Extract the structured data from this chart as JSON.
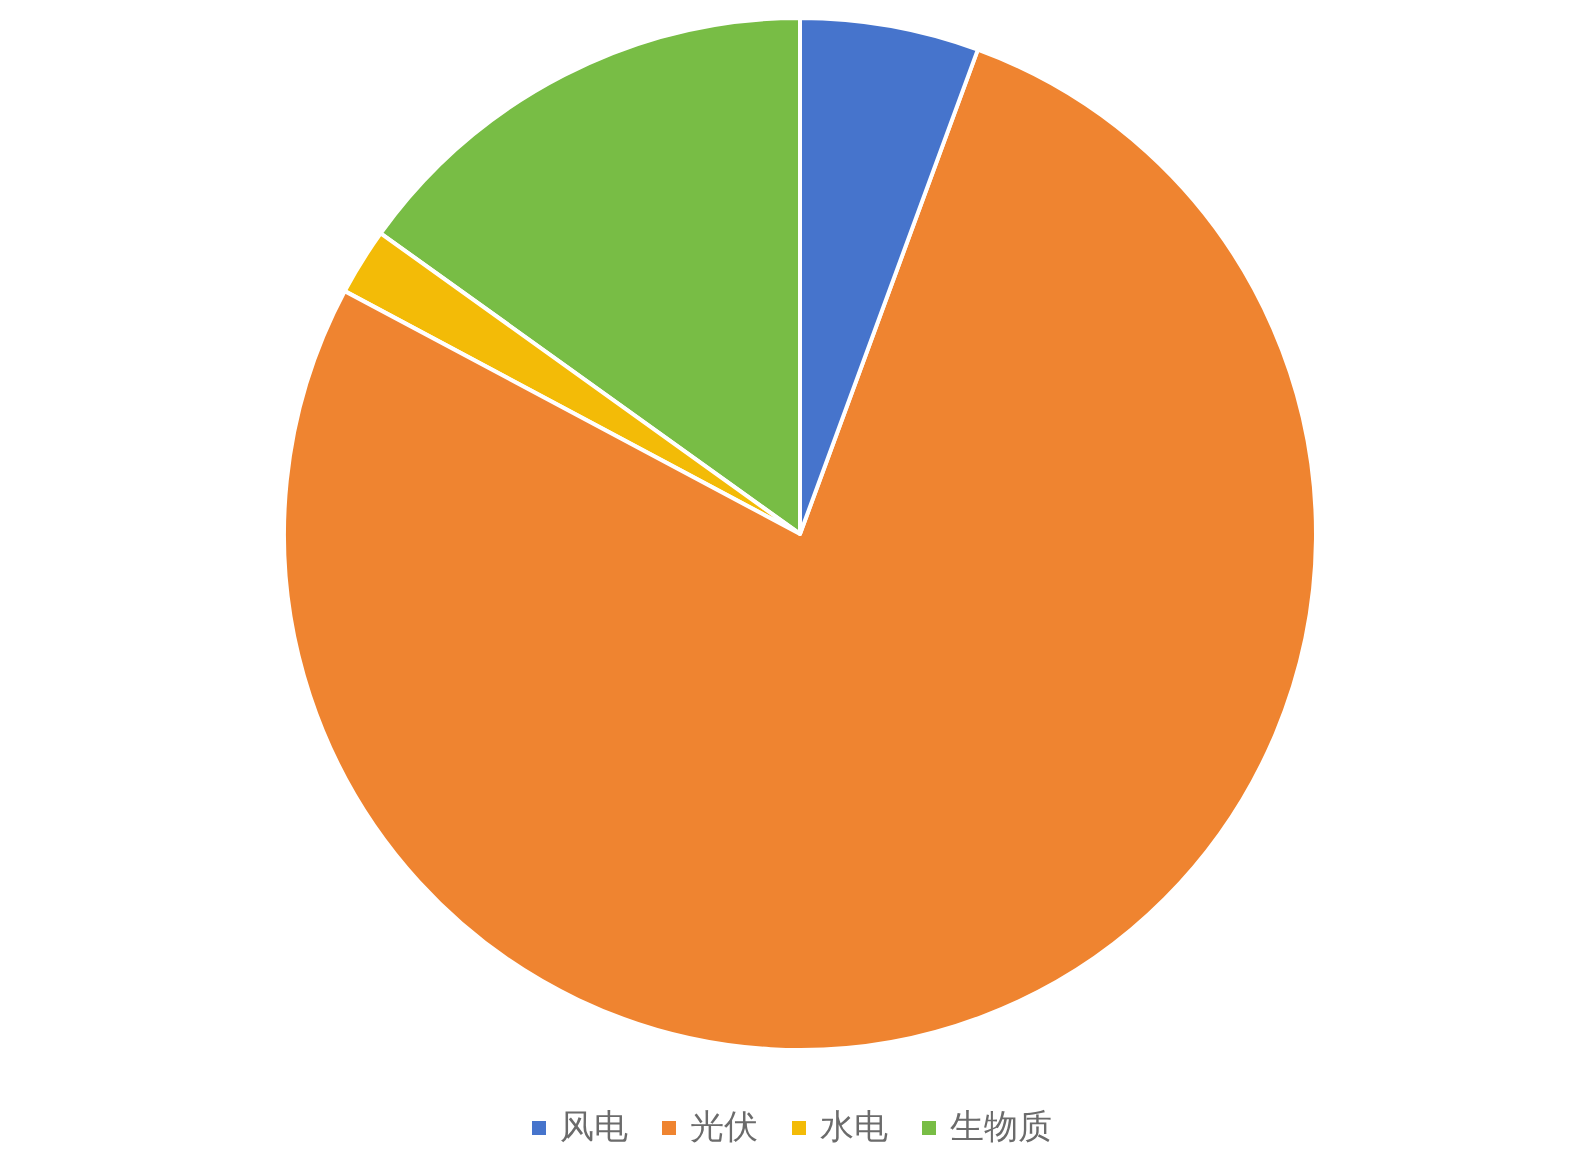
{
  "chart_data": {
    "type": "pie",
    "categories": [
      "风电",
      "光伏",
      "水电",
      "生物质"
    ],
    "values": [
      5.6,
      77.2,
      2.1,
      15.1
    ],
    "colors": [
      "#4674cc",
      "#ef8430",
      "#f3bb07",
      "#78bd45"
    ],
    "legend": "bottom"
  }
}
